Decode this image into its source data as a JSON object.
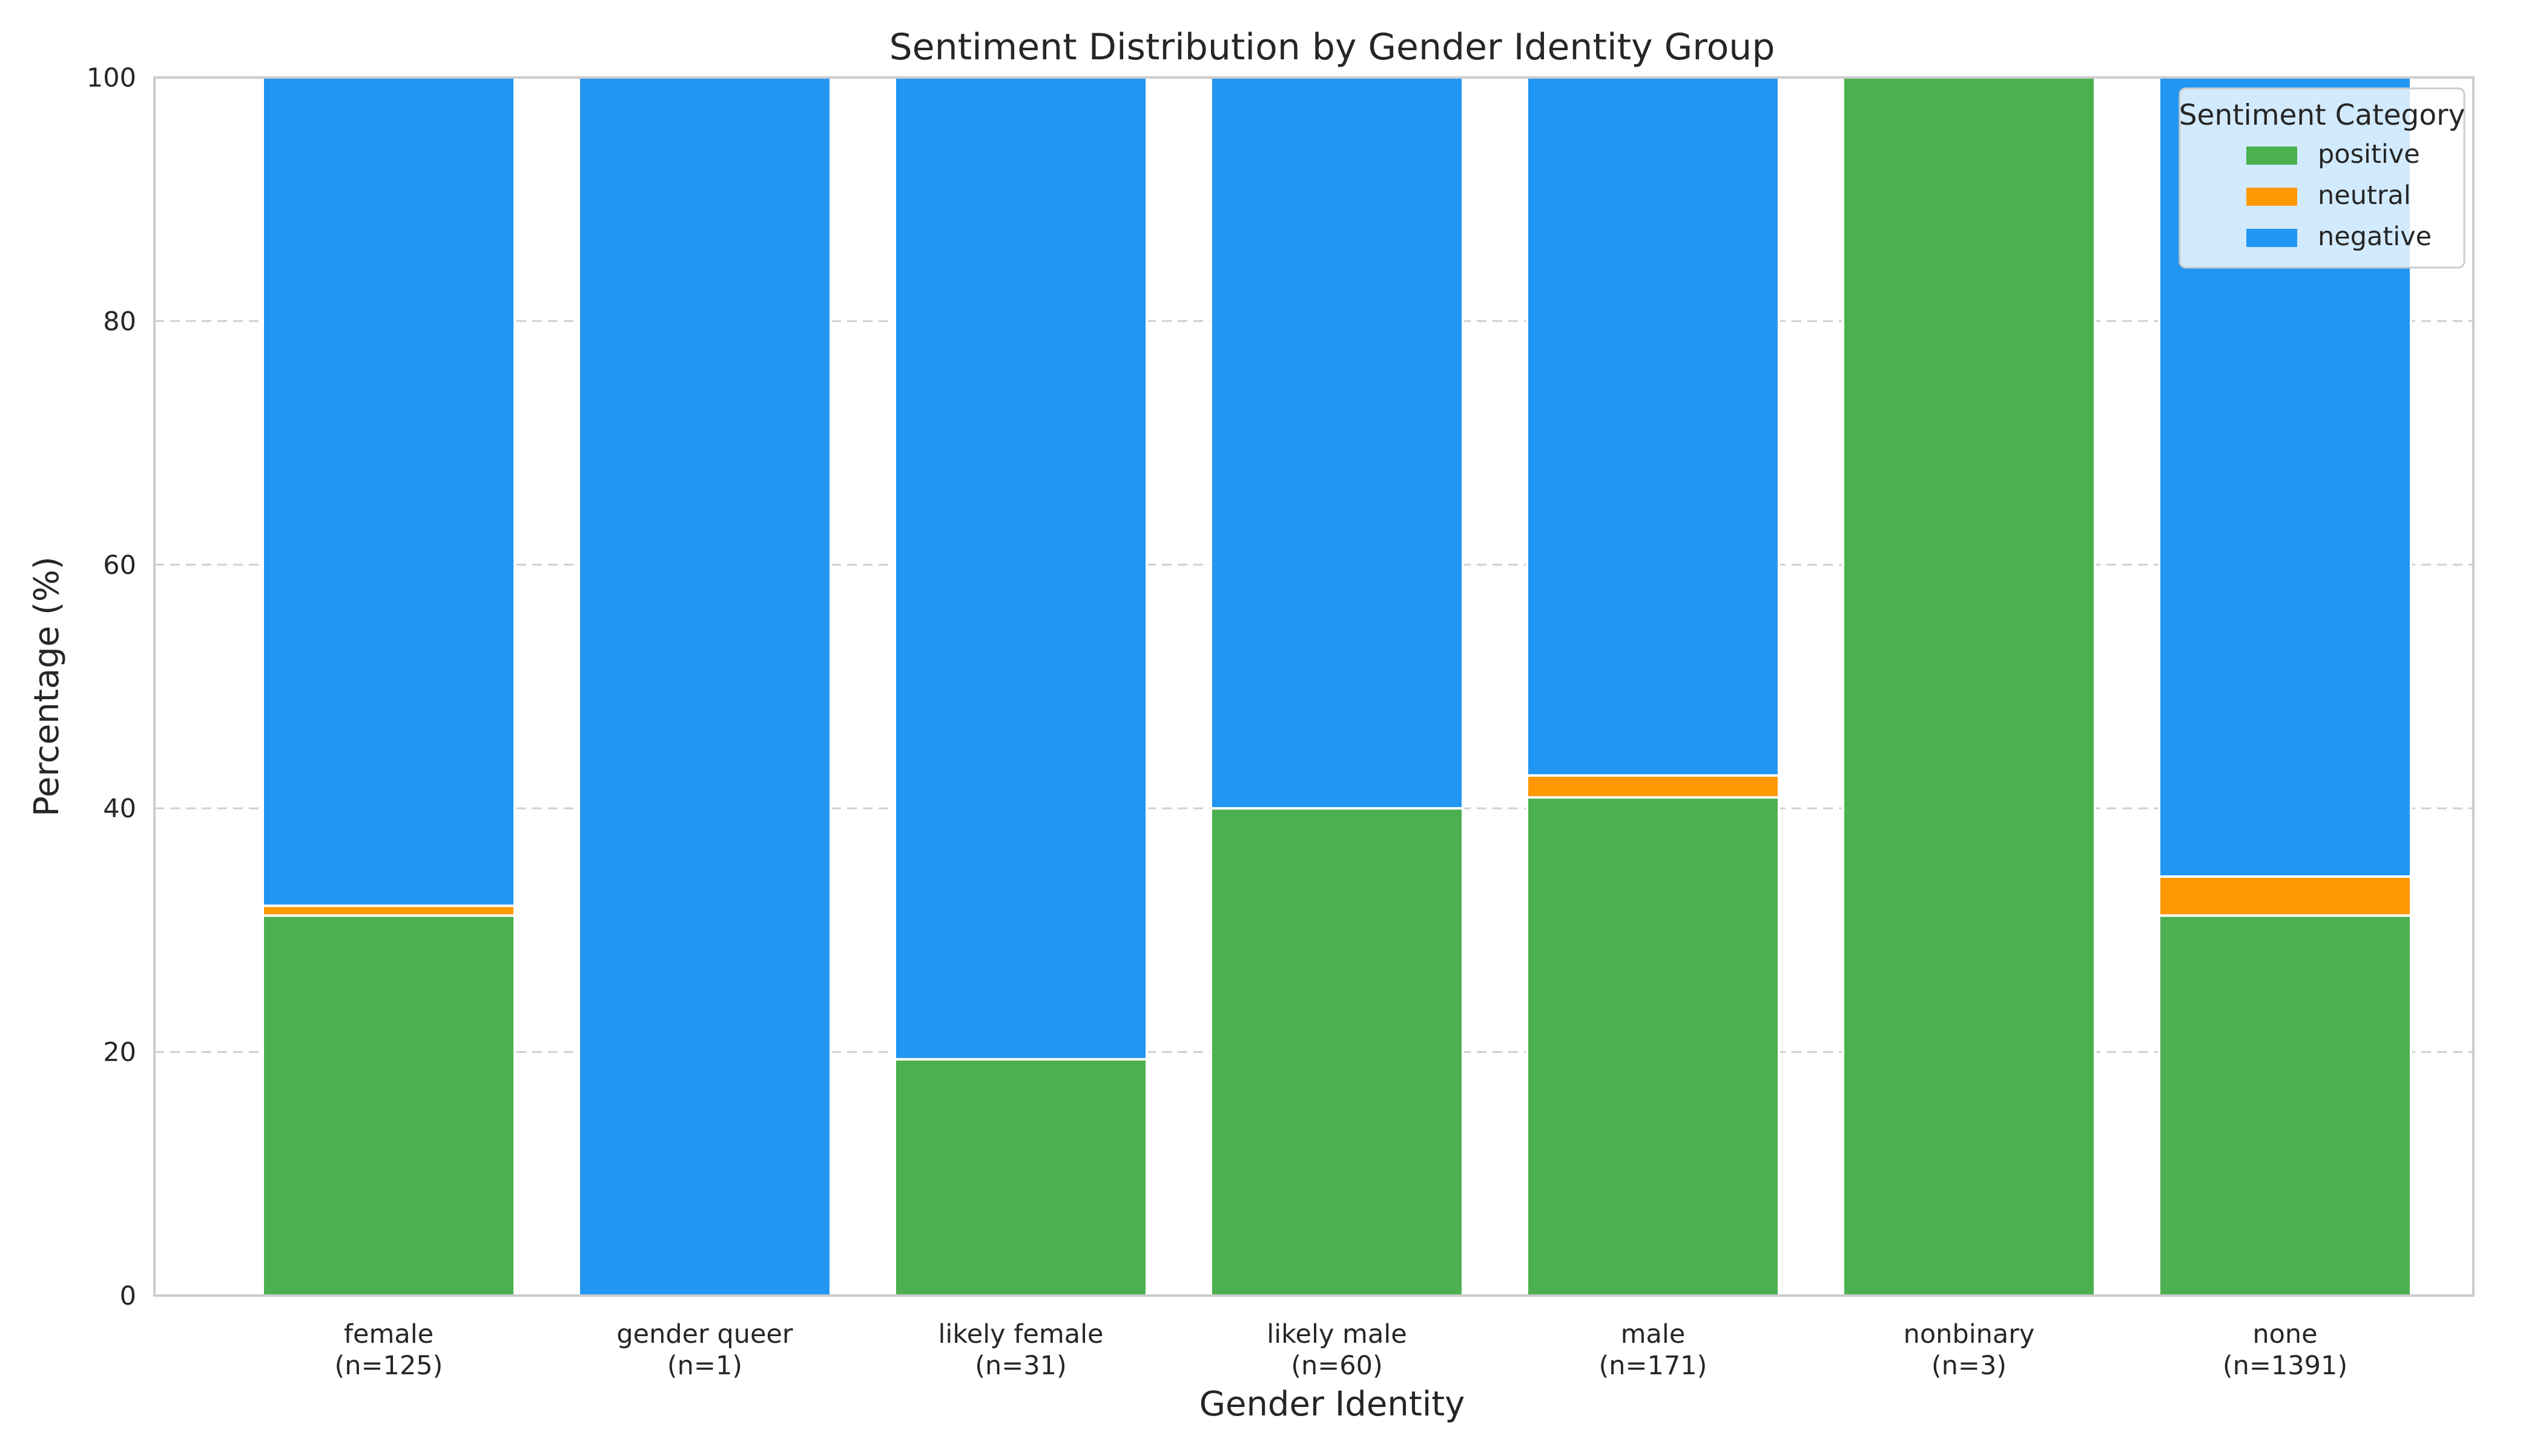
{
  "chart_data": {
    "type": "bar",
    "stacked": true,
    "title": "Sentiment Distribution by Gender Identity Group",
    "xlabel": "Gender Identity",
    "ylabel": "Percentage (%)",
    "ylim": [
      0,
      100
    ],
    "yticks": [
      0,
      20,
      40,
      60,
      80,
      100
    ],
    "grid": "y-dashed",
    "categories": [
      [
        "female",
        "(n=125)"
      ],
      [
        "gender queer",
        "(n=1)"
      ],
      [
        "likely female",
        "(n=31)"
      ],
      [
        "likely male",
        "(n=60)"
      ],
      [
        "male",
        "(n=171)"
      ],
      [
        "nonbinary",
        "(n=3)"
      ],
      [
        "none",
        "(n=1391)"
      ]
    ],
    "legend": {
      "title": "Sentiment Category",
      "placement": "top-right"
    },
    "series": [
      {
        "name": "positive",
        "color": "#4caf50",
        "values": [
          31.2,
          0,
          19.4,
          40.0,
          40.9,
          100,
          31.2
        ]
      },
      {
        "name": "neutral",
        "color": "#ff9800",
        "values": [
          0.8,
          0,
          0,
          0,
          1.8,
          0,
          3.2
        ]
      },
      {
        "name": "negative",
        "color": "#2196f3",
        "values": [
          68.0,
          100,
          80.6,
          60.0,
          57.3,
          0,
          65.6
        ]
      }
    ]
  }
}
